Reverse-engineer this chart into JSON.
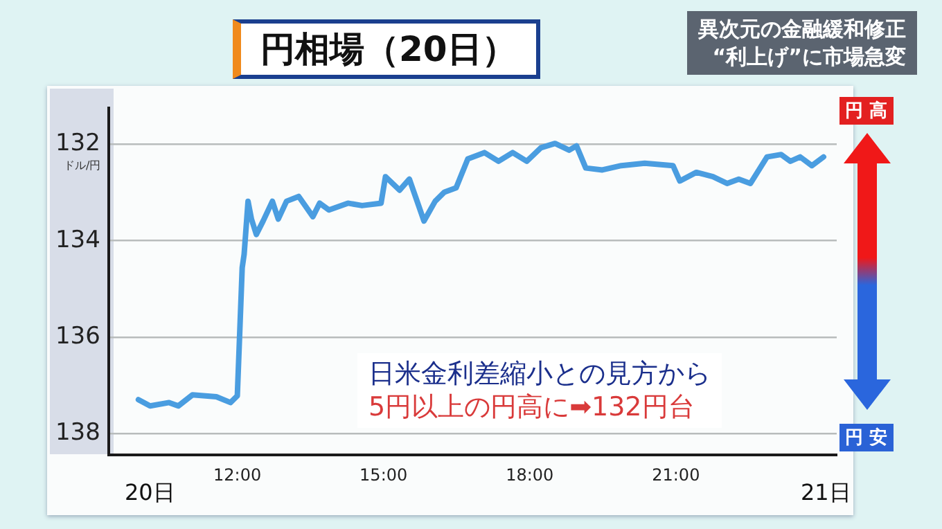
{
  "chart_data": {
    "type": "line",
    "title": "円相場（20日）",
    "ylabel": "ドル/円",
    "annotations": [
      "異次元の金融緩和修正",
      "“利上げ”に市場急変",
      "日米金利差縮小との見方から",
      "5円以上の円高に➡132円台",
      "円 高",
      "円 安",
      "20日",
      "21日"
    ],
    "x": [
      9.97,
      10.21,
      10.6,
      10.79,
      11.08,
      11.57,
      11.86,
      12.0,
      12.1,
      12.14,
      12.22,
      12.29,
      12.39,
      12.53,
      12.72,
      12.84,
      13.01,
      13.26,
      13.55,
      13.69,
      13.88,
      14.27,
      14.56,
      14.95,
      15.04,
      15.33,
      15.53,
      15.72,
      15.83,
      16.06,
      16.25,
      16.49,
      16.73,
      17.07,
      17.36,
      17.65,
      17.94,
      18.23,
      18.52,
      18.81,
      18.96,
      19.15,
      19.49,
      19.88,
      20.36,
      20.94,
      21.08,
      21.42,
      21.76,
      22.05,
      22.29,
      22.53,
      22.87,
      23.16,
      23.35,
      23.55,
      23.79,
      24.03
    ],
    "series": [
      {
        "color": "#4a9de0",
        "values": [
          137.3,
          137.43,
          137.36,
          137.43,
          137.2,
          137.24,
          137.36,
          137.22,
          134.56,
          134.28,
          133.18,
          133.55,
          133.87,
          133.59,
          133.18,
          133.55,
          133.18,
          133.08,
          133.5,
          133.22,
          133.36,
          133.22,
          133.27,
          133.22,
          132.67,
          132.95,
          132.72,
          133.27,
          133.59,
          133.18,
          132.99,
          132.9,
          132.3,
          132.17,
          132.35,
          132.17,
          132.35,
          132.07,
          131.98,
          132.12,
          132.03,
          132.49,
          132.53,
          132.44,
          132.39,
          132.44,
          132.76,
          132.58,
          132.67,
          132.81,
          132.72,
          132.81,
          132.26,
          132.21,
          132.35,
          132.26,
          132.44,
          132.26
        ]
      }
    ],
    "xlim": [
      9.36,
      24.3
    ],
    "xticks": [
      {
        "value": 12,
        "label": "12:00"
      },
      {
        "value": 15,
        "label": "15:00"
      },
      {
        "value": 18,
        "label": "18:00"
      },
      {
        "value": 21,
        "label": "21:00"
      }
    ],
    "ylim": [
      138.45,
      131.25
    ],
    "yticks": [
      132,
      134,
      136,
      138
    ],
    "grid": "y",
    "legend": false,
    "marker": "none",
    "line_style": "solid"
  }
}
